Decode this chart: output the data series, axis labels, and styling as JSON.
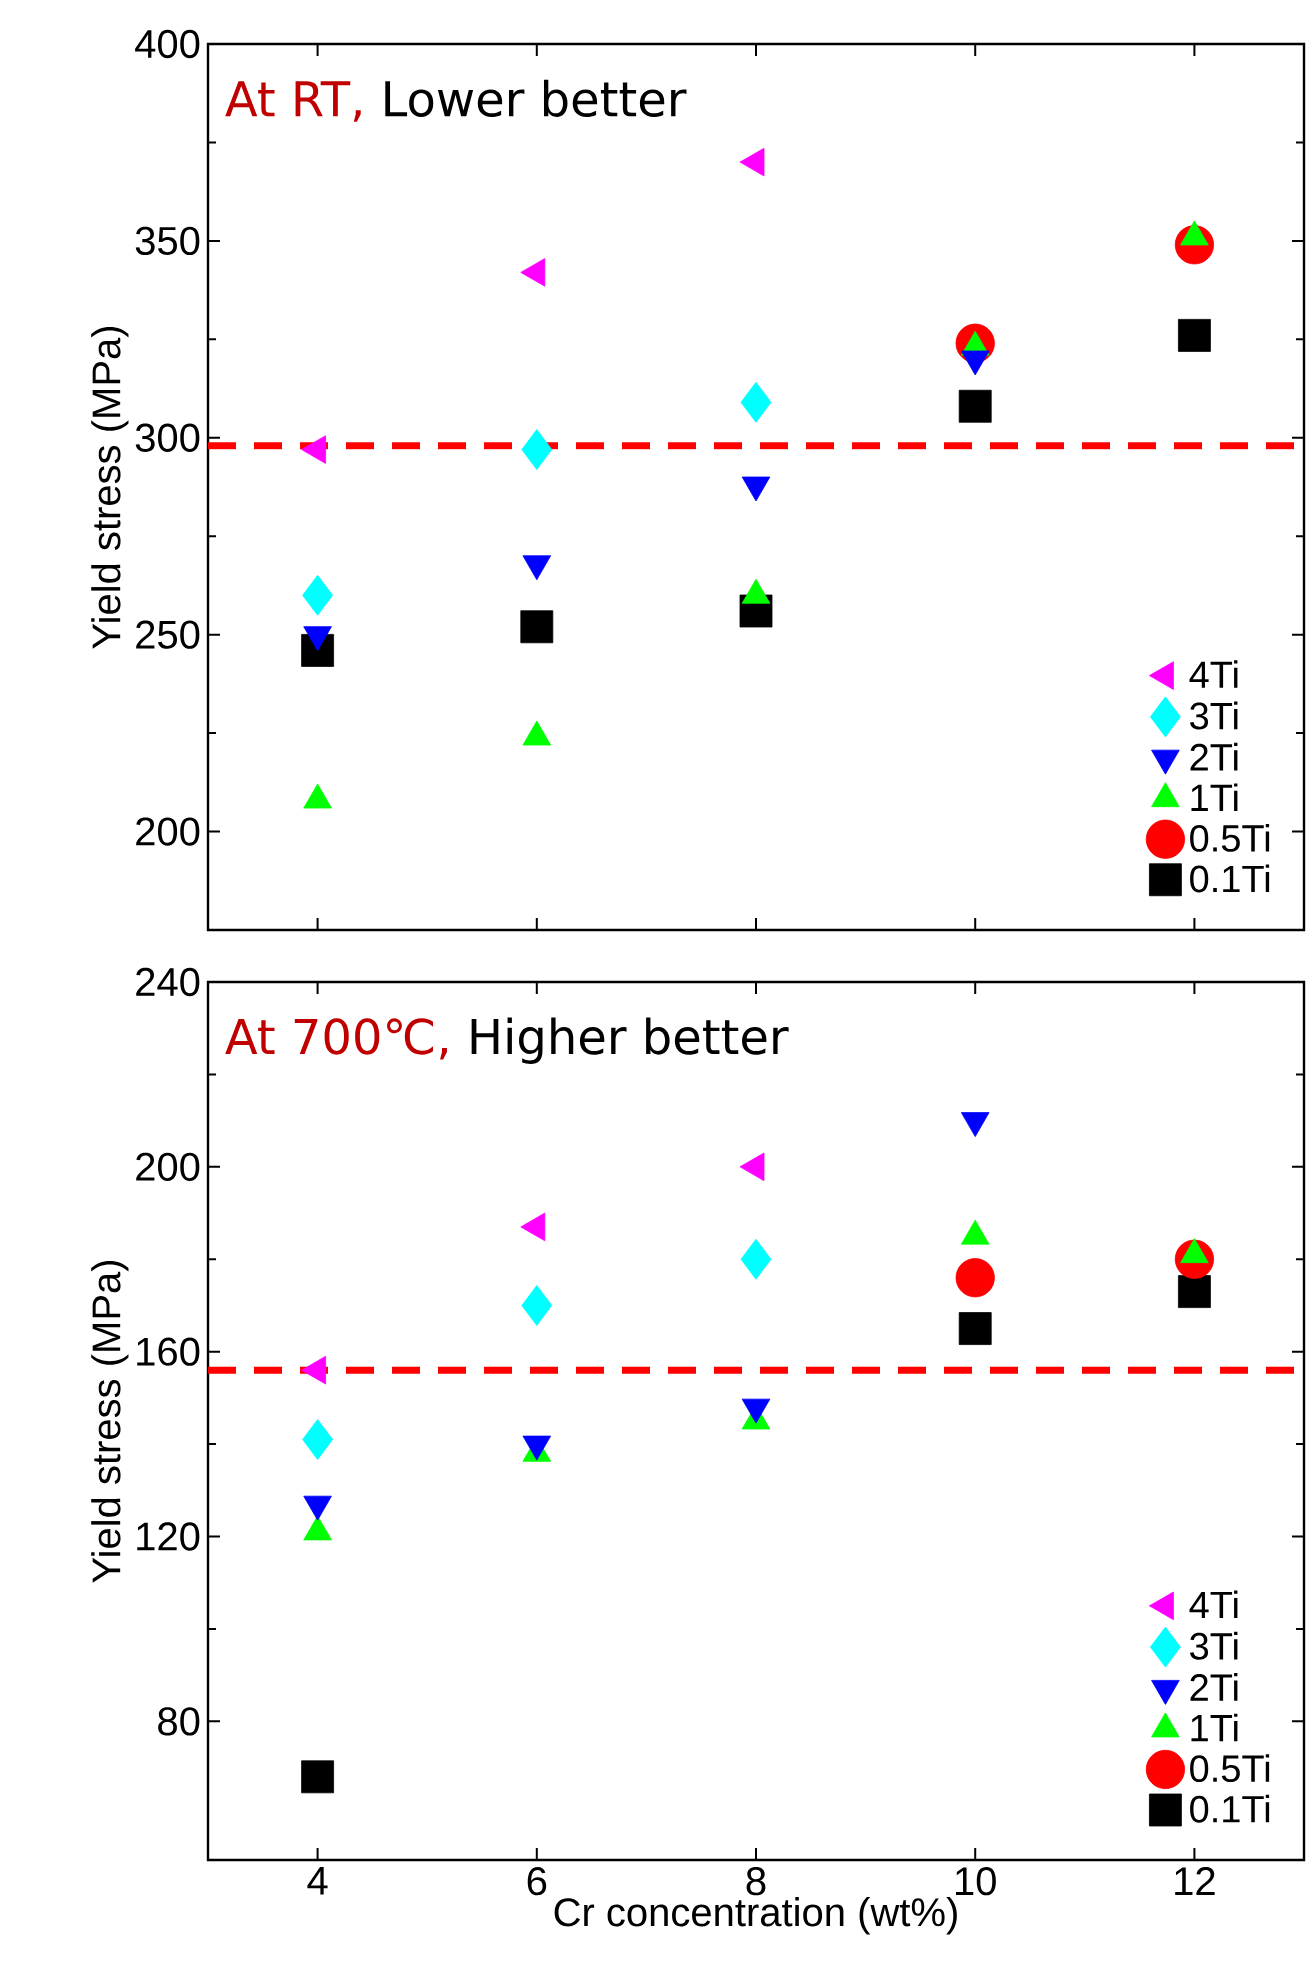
{
  "chart_data": [
    {
      "type": "scatter",
      "title": "At RT,",
      "subtitle": "Lower better",
      "ylabel": "Yield stress (MPa)",
      "x": [
        4,
        6,
        8,
        10,
        12
      ],
      "xlim": [
        3,
        13
      ],
      "xticks": [
        4,
        6,
        8,
        10,
        12
      ],
      "ylim": [
        175,
        400
      ],
      "yticks": [
        200,
        250,
        300,
        350,
        400
      ],
      "tick_labels": "y",
      "legend": "bottom right",
      "grid": false,
      "ref_lines": [
        {
          "axis": "y",
          "value": 298,
          "color": "#ff0000",
          "line_style": "dashed"
        }
      ],
      "series": [
        {
          "name": "4Ti",
          "color": "#ff00ff",
          "marker": "triangle-left",
          "values": [
            297,
            342,
            370,
            null,
            null
          ]
        },
        {
          "name": "3Ti",
          "color": "#00ffff",
          "marker": "diamond",
          "values": [
            260,
            297,
            309,
            null,
            null
          ]
        },
        {
          "name": "2Ti",
          "color": "#0000ff",
          "marker": "triangle-down",
          "values": [
            250,
            268,
            288,
            320,
            null
          ]
        },
        {
          "name": "1Ti",
          "color": "#00ff00",
          "marker": "triangle",
          "values": [
            208,
            224,
            260,
            323,
            351
          ]
        },
        {
          "name": "0.5Ti",
          "color": "#ff0000",
          "marker": "circle",
          "values": [
            null,
            null,
            null,
            324,
            349
          ]
        },
        {
          "name": "0.1Ti",
          "color": "#000000",
          "marker": "square",
          "values": [
            246,
            252,
            256,
            308,
            326
          ]
        }
      ]
    },
    {
      "type": "scatter",
      "title": "At 700℃,",
      "subtitle": "Higher better",
      "xlabel": "Cr concentration (wt%)",
      "ylabel": "Yield stress (MPa)",
      "x": [
        4,
        6,
        8,
        10,
        12
      ],
      "xlim": [
        3,
        13
      ],
      "xticks": [
        4,
        6,
        8,
        10,
        12
      ],
      "ylim": [
        50,
        240
      ],
      "yticks": [
        80,
        120,
        160,
        200,
        240
      ],
      "legend": "bottom right",
      "grid": false,
      "ref_lines": [
        {
          "axis": "y",
          "value": 156,
          "color": "#ff0000",
          "line_style": "dashed"
        }
      ],
      "series": [
        {
          "name": "4Ti",
          "color": "#ff00ff",
          "marker": "triangle-left",
          "values": [
            156,
            187,
            200,
            null,
            null
          ]
        },
        {
          "name": "3Ti",
          "color": "#00ffff",
          "marker": "diamond",
          "values": [
            141,
            170,
            180,
            null,
            null
          ]
        },
        {
          "name": "2Ti",
          "color": "#0000ff",
          "marker": "triangle-down",
          "values": [
            127,
            140,
            148,
            210,
            null
          ]
        },
        {
          "name": "1Ti",
          "color": "#00ff00",
          "marker": "triangle",
          "values": [
            121,
            138,
            145,
            185,
            181
          ]
        },
        {
          "name": "0.5Ti",
          "color": "#ff0000",
          "marker": "circle",
          "values": [
            null,
            null,
            null,
            176,
            180
          ]
        },
        {
          "name": "0.1Ti",
          "color": "#000000",
          "marker": "square",
          "values": [
            68,
            null,
            null,
            165,
            173
          ]
        }
      ]
    }
  ]
}
